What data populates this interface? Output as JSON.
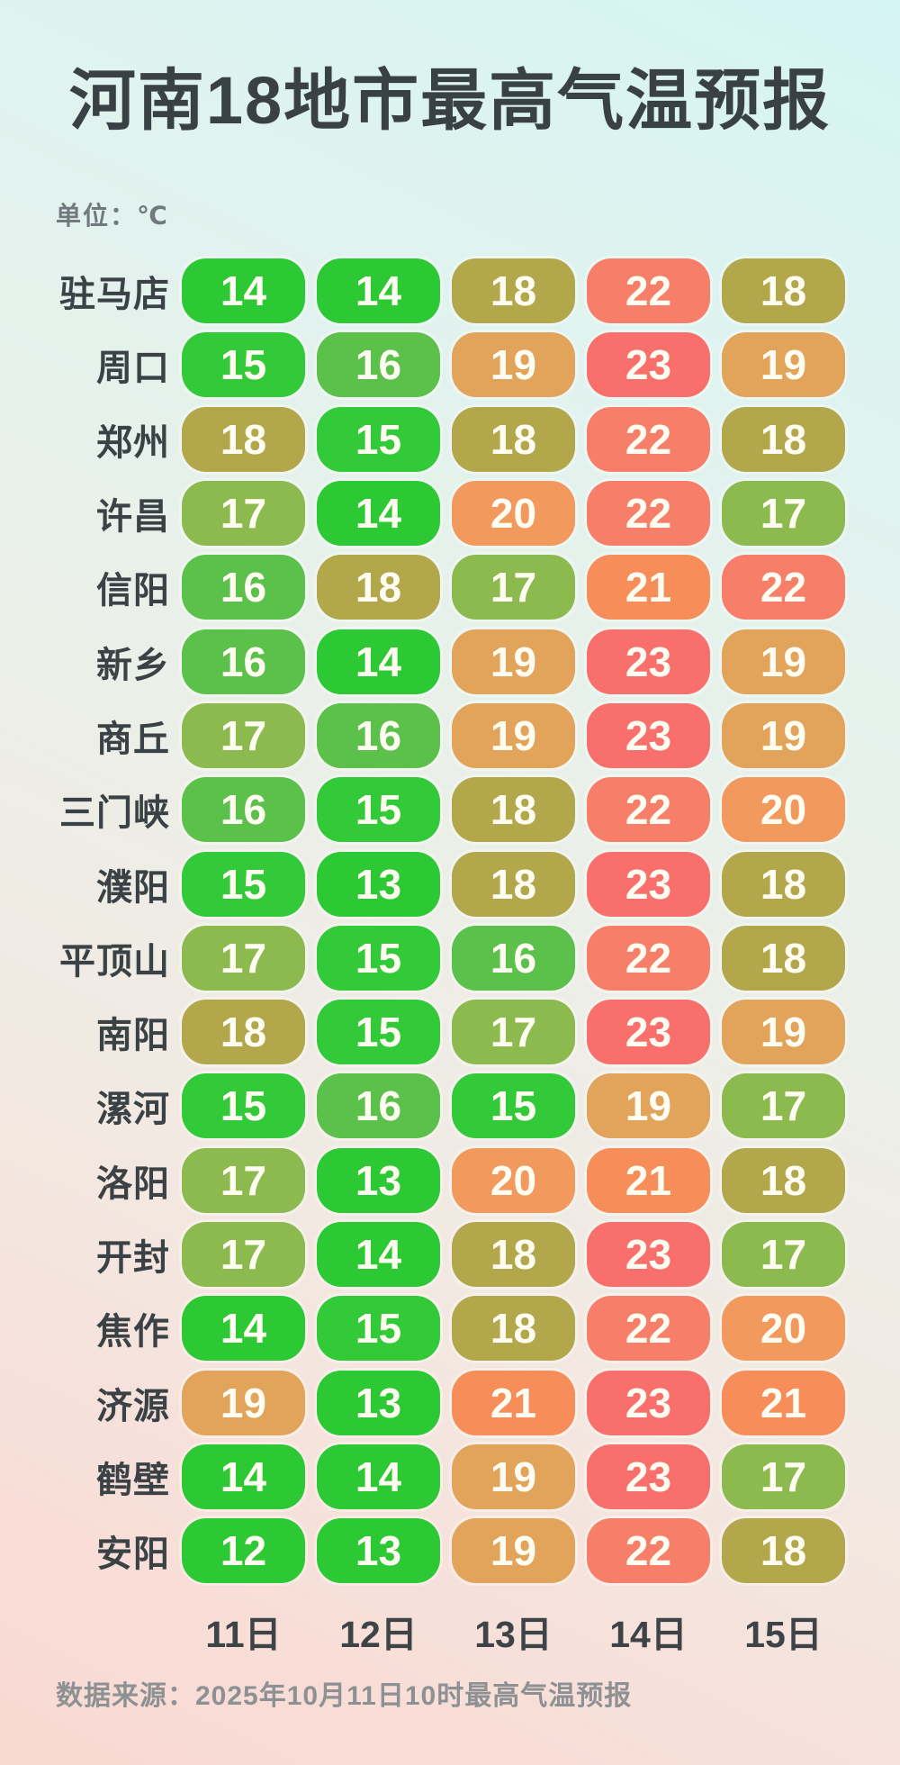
{
  "title": "河南18地市最高气温预报",
  "unit_label": "单位：℃",
  "footer_source": "数据来源：2025年10月11日10时最高气温预报",
  "chart_data": {
    "type": "heatmap",
    "title": "河南18地市最高气温预报",
    "unit": "℃",
    "columns": [
      "11日",
      "12日",
      "13日",
      "14日",
      "15日"
    ],
    "rows": [
      {
        "city": "驻马店",
        "values": [
          14,
          14,
          18,
          22,
          18
        ]
      },
      {
        "city": "周口",
        "values": [
          15,
          16,
          19,
          23,
          19
        ]
      },
      {
        "city": "郑州",
        "values": [
          18,
          15,
          18,
          22,
          18
        ]
      },
      {
        "city": "许昌",
        "values": [
          17,
          14,
          20,
          22,
          17
        ]
      },
      {
        "city": "信阳",
        "values": [
          16,
          18,
          17,
          21,
          22
        ]
      },
      {
        "city": "新乡",
        "values": [
          16,
          14,
          19,
          23,
          19
        ]
      },
      {
        "city": "商丘",
        "values": [
          17,
          16,
          19,
          23,
          19
        ]
      },
      {
        "city": "三门峡",
        "values": [
          16,
          15,
          18,
          22,
          20
        ]
      },
      {
        "city": "濮阳",
        "values": [
          15,
          13,
          18,
          23,
          18
        ]
      },
      {
        "city": "平顶山",
        "values": [
          17,
          15,
          16,
          22,
          18
        ]
      },
      {
        "city": "南阳",
        "values": [
          18,
          15,
          17,
          23,
          19
        ]
      },
      {
        "city": "漯河",
        "values": [
          15,
          16,
          15,
          19,
          17
        ]
      },
      {
        "city": "洛阳",
        "values": [
          17,
          13,
          20,
          21,
          18
        ]
      },
      {
        "city": "开封",
        "values": [
          17,
          14,
          18,
          23,
          17
        ]
      },
      {
        "city": "焦作",
        "values": [
          14,
          15,
          18,
          22,
          20
        ]
      },
      {
        "city": "济源",
        "values": [
          19,
          13,
          21,
          23,
          21
        ]
      },
      {
        "city": "鹤壁",
        "values": [
          14,
          14,
          19,
          23,
          17
        ]
      },
      {
        "city": "安阳",
        "values": [
          12,
          13,
          19,
          22,
          18
        ]
      }
    ],
    "value_color_scale": {
      "12": "#2dc934",
      "13": "#2dc934",
      "14": "#2dc934",
      "15": "#32ca38",
      "16": "#5cc14a",
      "17": "#8cba4e",
      "18": "#b2a74b",
      "19": "#e2a35b",
      "20": "#f29a5e",
      "21": "#f78d58",
      "22": "#f77e68",
      "23": "#f86f6b"
    },
    "value_text_color": "#fffdf2"
  }
}
